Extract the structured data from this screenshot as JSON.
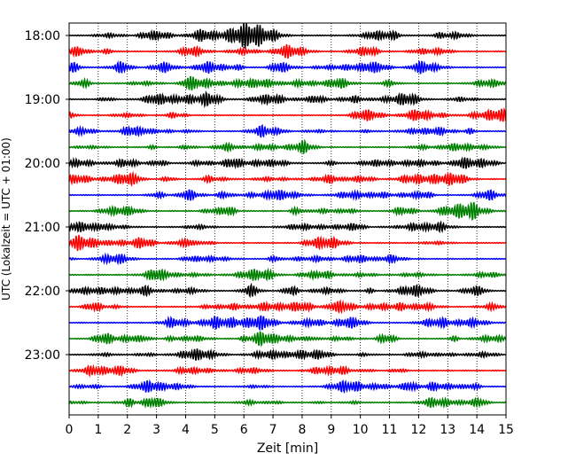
{
  "chart_data": {
    "type": "line",
    "title": "",
    "xlabel": "Zeit  [min]",
    "ylabel": "UTC (Lokalzeit = UTC + 01:00)",
    "xlim": [
      0,
      15
    ],
    "x_ticks": [
      0,
      1,
      2,
      3,
      4,
      5,
      6,
      7,
      8,
      9,
      10,
      11,
      12,
      13,
      14,
      15
    ],
    "x_tick_labels": [
      "0",
      "1",
      "2",
      "3",
      "4",
      "5",
      "6",
      "7",
      "8",
      "9",
      "10",
      "11",
      "12",
      "13",
      "14",
      "15"
    ],
    "y_tick_labels": [
      "18:00",
      "19:00",
      "20:00",
      "21:00",
      "22:00",
      "23:00"
    ],
    "trace_minutes": 15,
    "trace_start_times": [
      "18:00",
      "18:15",
      "18:30",
      "18:45",
      "19:00",
      "19:15",
      "19:30",
      "19:45",
      "20:00",
      "20:15",
      "20:30",
      "20:45",
      "21:00",
      "21:15",
      "21:30",
      "21:45",
      "22:00",
      "22:15",
      "22:30",
      "22:45",
      "23:00",
      "23:15",
      "23:30",
      "23:45"
    ],
    "trace_color_cycle": [
      "#000000",
      "#ff0000",
      "#0000ff",
      "#008000"
    ],
    "grid": "vertical dotted",
    "legend": "none"
  }
}
